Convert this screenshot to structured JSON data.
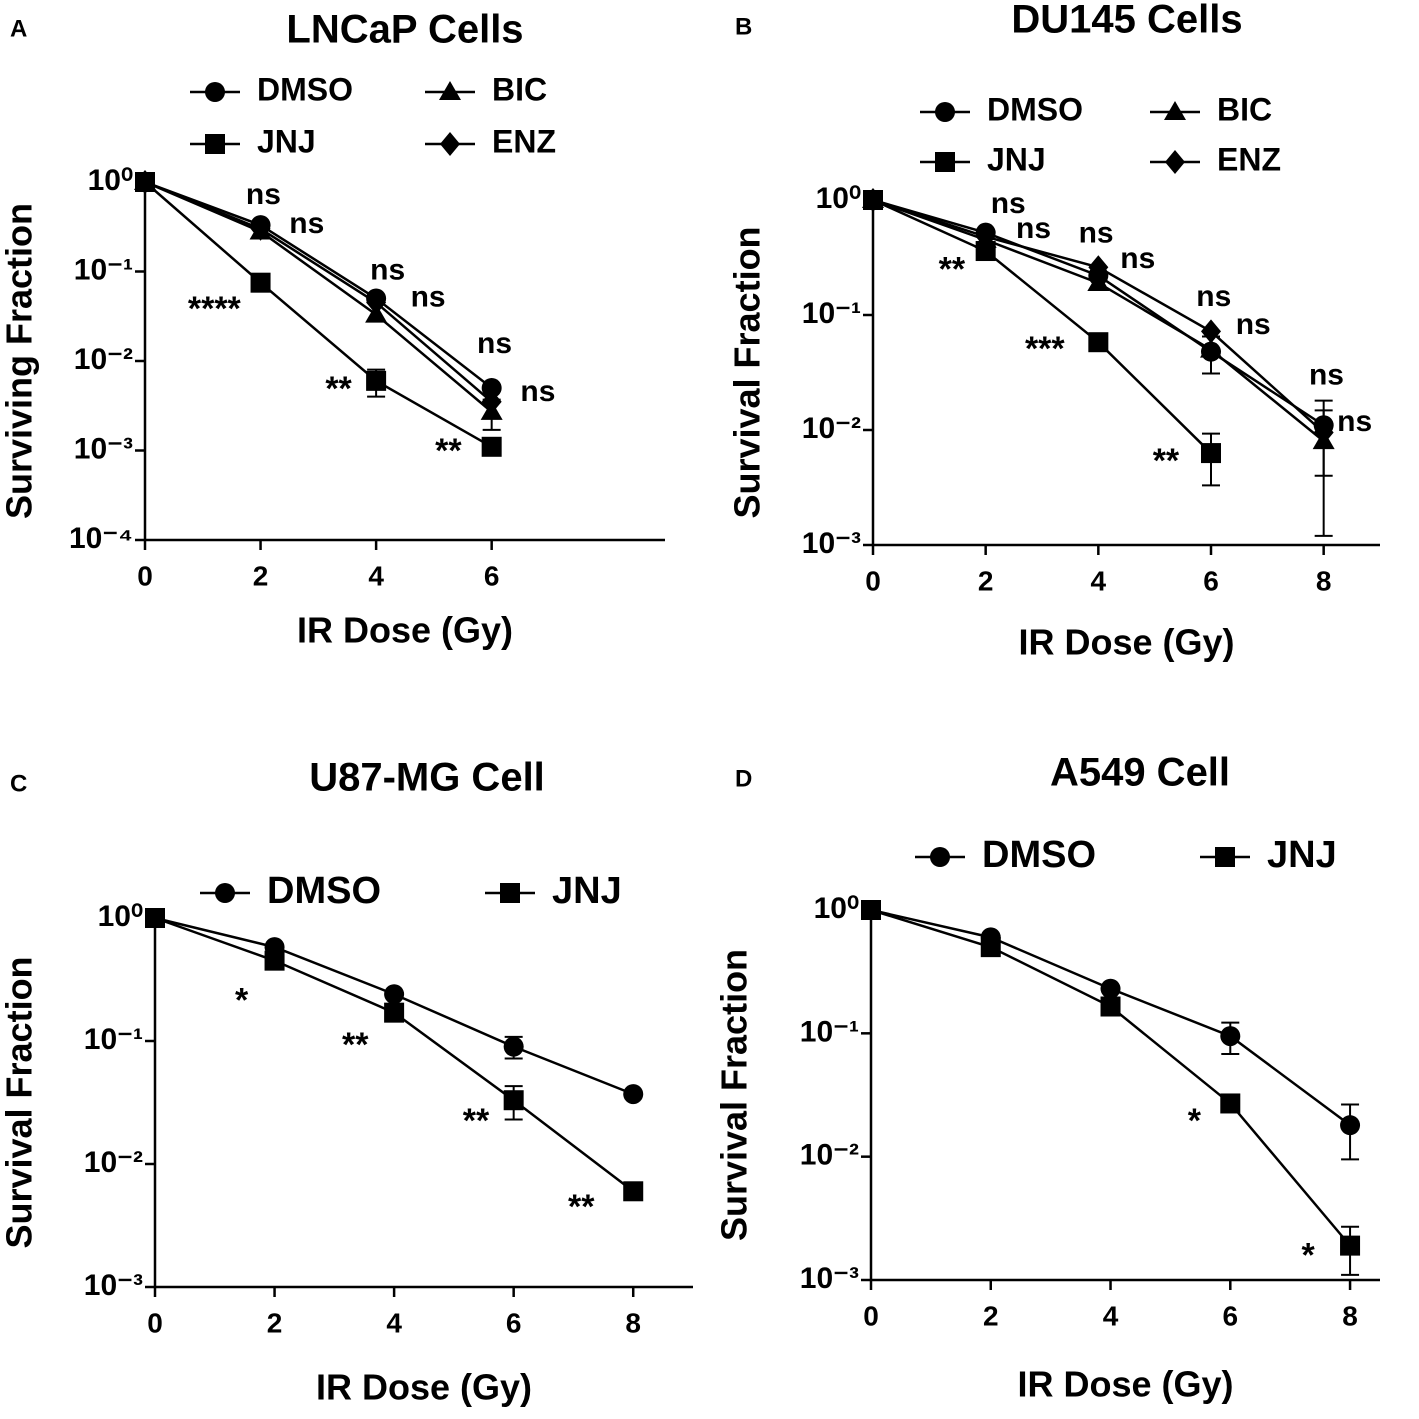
{
  "chart_data": [
    {
      "type": "line",
      "panel": "A",
      "title": "LNCaP Cells",
      "xlabel": "IR Dose (Gy)",
      "ylabel": "Surviving Fraction",
      "log_scale": true,
      "x": [
        0,
        2,
        4,
        6
      ],
      "xlim": [
        0,
        9
      ],
      "xticks": [
        0,
        2,
        4,
        6
      ],
      "ylim": [
        0.0001,
        1
      ],
      "yticks": [
        {
          "value": 1,
          "label": "10⁰"
        },
        {
          "value": 0.1,
          "label": "10⁻¹"
        },
        {
          "value": 0.01,
          "label": "10⁻²"
        },
        {
          "value": 0.001,
          "label": "10⁻³"
        },
        {
          "value": 0.0001,
          "label": "10⁻⁴"
        }
      ],
      "series": [
        {
          "name": "DMSO",
          "marker": "circle",
          "color": "#000000",
          "values": [
            1,
            0.33,
            0.05,
            0.005
          ],
          "errors": [
            null,
            null,
            null,
            null
          ]
        },
        {
          "name": "JNJ",
          "marker": "square",
          "color": "#000000",
          "values": [
            1,
            0.075,
            0.006,
            0.0011
          ],
          "errors": [
            null,
            null,
            0.002,
            null
          ]
        },
        {
          "name": "BIC",
          "marker": "triangle",
          "color": "#000000",
          "values": [
            1,
            0.28,
            0.033,
            0.0027
          ],
          "errors": [
            null,
            null,
            null,
            0.001
          ]
        },
        {
          "name": "ENZ",
          "marker": "diamond",
          "color": "#000000",
          "values": [
            1,
            0.3,
            0.045,
            0.0035
          ],
          "errors": [
            null,
            null,
            null,
            null
          ]
        }
      ],
      "annotations": [
        {
          "text": "ns",
          "x": 2.05,
          "y": 0.7
        },
        {
          "text": "ns",
          "x": 2.8,
          "y": 0.33
        },
        {
          "text": "****",
          "x": 1.2,
          "y": 0.042
        },
        {
          "text": "ns",
          "x": 4.2,
          "y": 0.1
        },
        {
          "text": "ns",
          "x": 4.9,
          "y": 0.05
        },
        {
          "text": "**",
          "x": 3.35,
          "y": 0.0054
        },
        {
          "text": "ns",
          "x": 6.05,
          "y": 0.015
        },
        {
          "text": "ns",
          "x": 6.8,
          "y": 0.0044
        },
        {
          "text": "**",
          "x": 5.25,
          "y": 0.0011
        }
      ]
    },
    {
      "type": "line",
      "panel": "B",
      "title": "DU145 Cells",
      "xlabel": "IR Dose (Gy)",
      "ylabel": "Survival Fraction",
      "log_scale": true,
      "x": [
        0,
        2,
        4,
        6,
        8
      ],
      "xlim": [
        0,
        9
      ],
      "xticks": [
        0,
        2,
        4,
        6,
        8
      ],
      "ylim": [
        0.001,
        1
      ],
      "yticks": [
        {
          "value": 1,
          "label": "10⁰"
        },
        {
          "value": 0.1,
          "label": "10⁻¹"
        },
        {
          "value": 0.01,
          "label": "10⁻²"
        },
        {
          "value": 0.001,
          "label": "10⁻³"
        }
      ],
      "series": [
        {
          "name": "DMSO",
          "marker": "circle",
          "color": "#000000",
          "values": [
            1,
            0.52,
            0.22,
            0.048,
            0.011
          ],
          "errors": [
            null,
            null,
            null,
            0.017,
            0.007
          ]
        },
        {
          "name": "JNJ",
          "marker": "square",
          "color": "#000000",
          "values": [
            1,
            0.36,
            0.058,
            0.0063,
            null
          ],
          "errors": [
            null,
            null,
            null,
            0.003,
            null
          ]
        },
        {
          "name": "BIC",
          "marker": "triangle",
          "color": "#000000",
          "values": [
            1,
            0.45,
            0.19,
            0.05,
            0.008
          ],
          "errors": [
            null,
            null,
            null,
            null,
            0.0068
          ]
        },
        {
          "name": "ENZ",
          "marker": "diamond",
          "color": "#000000",
          "values": [
            1,
            0.48,
            0.26,
            0.072,
            0.0095
          ],
          "errors": [
            null,
            null,
            null,
            null,
            null
          ]
        }
      ],
      "annotations": [
        {
          "text": "ns",
          "x": 2.4,
          "y": 0.9
        },
        {
          "text": "ns",
          "x": 2.85,
          "y": 0.55
        },
        {
          "text": "**",
          "x": 1.4,
          "y": 0.27
        },
        {
          "text": "ns",
          "x": 3.96,
          "y": 0.5
        },
        {
          "text": "ns",
          "x": 4.7,
          "y": 0.3
        },
        {
          "text": "***",
          "x": 3.05,
          "y": 0.055
        },
        {
          "text": "ns",
          "x": 6.05,
          "y": 0.14
        },
        {
          "text": "ns",
          "x": 6.75,
          "y": 0.08
        },
        {
          "text": "**",
          "x": 5.2,
          "y": 0.0058
        },
        {
          "text": "ns",
          "x": 8.05,
          "y": 0.029
        },
        {
          "text": "ns",
          "x": 8.55,
          "y": 0.0115
        }
      ]
    },
    {
      "type": "line",
      "panel": "C",
      "title": "U87-MG Cell",
      "xlabel": "IR Dose (Gy)",
      "ylabel": "Survival Fraction",
      "log_scale": true,
      "x": [
        0,
        2,
        4,
        6,
        8
      ],
      "xlim": [
        0,
        9
      ],
      "xticks": [
        0,
        2,
        4,
        6,
        8
      ],
      "ylim": [
        0.001,
        1
      ],
      "yticks": [
        {
          "value": 1,
          "label": "10⁰"
        },
        {
          "value": 0.1,
          "label": "10⁻¹"
        },
        {
          "value": 0.01,
          "label": "10⁻²"
        },
        {
          "value": 0.001,
          "label": "10⁻³"
        }
      ],
      "series": [
        {
          "name": "DMSO",
          "marker": "circle",
          "color": "#000000",
          "values": [
            1,
            0.58,
            0.24,
            0.09,
            0.037
          ],
          "errors": [
            null,
            null,
            null,
            0.018,
            null
          ]
        },
        {
          "name": "JNJ",
          "marker": "square",
          "color": "#000000",
          "values": [
            1,
            0.45,
            0.17,
            0.033,
            0.006
          ],
          "errors": [
            null,
            null,
            null,
            0.01,
            null
          ]
        }
      ],
      "annotations": [
        {
          "text": "*",
          "x": 1.45,
          "y": 0.23
        },
        {
          "text": "**",
          "x": 3.35,
          "y": 0.1
        },
        {
          "text": "**",
          "x": 5.37,
          "y": 0.024
        },
        {
          "text": "**",
          "x": 7.13,
          "y": 0.0048
        }
      ]
    },
    {
      "type": "line",
      "panel": "D",
      "title": "A549 Cell",
      "xlabel": "IR Dose (Gy)",
      "ylabel": "Survival Fraction",
      "log_scale": true,
      "x": [
        0,
        2,
        4,
        6,
        8
      ],
      "xlim": [
        0,
        8.5
      ],
      "xticks": [
        0,
        2,
        4,
        6,
        8
      ],
      "ylim": [
        0.001,
        1
      ],
      "yticks": [
        {
          "value": 1,
          "label": "10⁰"
        },
        {
          "value": 0.1,
          "label": "10⁻¹"
        },
        {
          "value": 0.01,
          "label": "10⁻²"
        },
        {
          "value": 0.001,
          "label": "10⁻³"
        }
      ],
      "series": [
        {
          "name": "DMSO",
          "marker": "circle",
          "color": "#000000",
          "values": [
            1,
            0.6,
            0.23,
            0.095,
            0.018
          ],
          "errors": [
            null,
            null,
            null,
            0.027,
            0.0085
          ]
        },
        {
          "name": "JNJ",
          "marker": "square",
          "color": "#000000",
          "values": [
            1,
            0.5,
            0.165,
            0.027,
            0.0019
          ],
          "errors": [
            null,
            null,
            null,
            null,
            0.0008
          ]
        }
      ],
      "annotations": [
        {
          "text": "*",
          "x": 5.4,
          "y": 0.021
        },
        {
          "text": "*",
          "x": 7.3,
          "y": 0.0017
        }
      ]
    }
  ]
}
